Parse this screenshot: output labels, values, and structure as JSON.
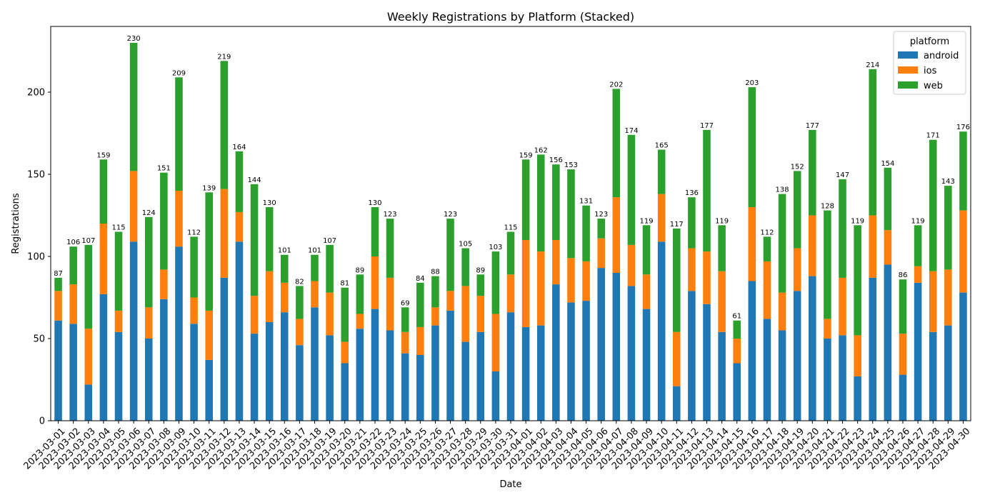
{
  "chart_data": {
    "type": "bar",
    "stacked": true,
    "title": "Weekly Registrations by Platform (Stacked)",
    "xlabel": "Date",
    "ylabel": "Registrations",
    "ylim": [
      0,
      240
    ],
    "yticks": [
      0,
      50,
      100,
      150,
      200
    ],
    "grid": false,
    "legend": {
      "title": "platform",
      "position": "top-right"
    },
    "categories": [
      "2023-03-01",
      "2023-03-02",
      "2023-03-03",
      "2023-03-04",
      "2023-03-05",
      "2023-03-06",
      "2023-03-07",
      "2023-03-08",
      "2023-03-09",
      "2023-03-10",
      "2023-03-11",
      "2023-03-12",
      "2023-03-13",
      "2023-03-14",
      "2023-03-15",
      "2023-03-16",
      "2023-03-17",
      "2023-03-18",
      "2023-03-19",
      "2023-03-20",
      "2023-03-21",
      "2023-03-22",
      "2023-03-23",
      "2023-03-24",
      "2023-03-25",
      "2023-03-26",
      "2023-03-27",
      "2023-03-28",
      "2023-03-29",
      "2023-03-30",
      "2023-03-31",
      "2023-04-01",
      "2023-04-02",
      "2023-04-03",
      "2023-04-04",
      "2023-04-05",
      "2023-04-06",
      "2023-04-07",
      "2023-04-08",
      "2023-04-09",
      "2023-04-10",
      "2023-04-11",
      "2023-04-12",
      "2023-04-13",
      "2023-04-14",
      "2023-04-15",
      "2023-04-16",
      "2023-04-17",
      "2023-04-18",
      "2023-04-19",
      "2023-04-20",
      "2023-04-21",
      "2023-04-22",
      "2023-04-23",
      "2023-04-24",
      "2023-04-25",
      "2023-04-26",
      "2023-04-27",
      "2023-04-28",
      "2023-04-29",
      "2023-04-30"
    ],
    "series": [
      {
        "name": "android",
        "color": "#1f77b4",
        "values": [
          61,
          59,
          22,
          77,
          54,
          109,
          50,
          74,
          106,
          59,
          37,
          87,
          109,
          53,
          60,
          66,
          46,
          69,
          52,
          35,
          56,
          68,
          55,
          41,
          40,
          58,
          67,
          48,
          54,
          30,
          66,
          57,
          58,
          83,
          72,
          73,
          93,
          90,
          82,
          68,
          109,
          21,
          79,
          71,
          54,
          35,
          85,
          62,
          55,
          79,
          88,
          50,
          52,
          27,
          87,
          95,
          28,
          84,
          54,
          58,
          78
        ]
      },
      {
        "name": "ios",
        "color": "#ff7f0e",
        "values": [
          18,
          24,
          34,
          43,
          13,
          43,
          19,
          18,
          34,
          16,
          30,
          54,
          18,
          23,
          31,
          18,
          16,
          16,
          26,
          13,
          9,
          32,
          32,
          13,
          17,
          11,
          12,
          34,
          22,
          35,
          23,
          53,
          45,
          27,
          27,
          24,
          18,
          46,
          25,
          21,
          29,
          33,
          26,
          32,
          37,
          15,
          45,
          35,
          23,
          26,
          37,
          12,
          35,
          25,
          38,
          21,
          25,
          10,
          37,
          34,
          50
        ]
      },
      {
        "name": "web",
        "color": "#2ca02c",
        "values": [
          8,
          23,
          51,
          39,
          48,
          78,
          55,
          59,
          69,
          37,
          72,
          78,
          37,
          68,
          39,
          17,
          20,
          16,
          29,
          33,
          24,
          30,
          36,
          15,
          27,
          19,
          44,
          23,
          13,
          38,
          26,
          49,
          59,
          46,
          54,
          34,
          12,
          66,
          67,
          30,
          27,
          63,
          31,
          74,
          28,
          11,
          73,
          15,
          60,
          47,
          52,
          66,
          60,
          67,
          89,
          38,
          33,
          25,
          80,
          51,
          48
        ]
      }
    ],
    "totals": [
      87,
      106,
      107,
      159,
      115,
      230,
      124,
      151,
      209,
      112,
      139,
      219,
      164,
      144,
      130,
      101,
      82,
      101,
      107,
      81,
      89,
      130,
      123,
      69,
      84,
      88,
      123,
      105,
      89,
      103,
      115,
      159,
      162,
      156,
      153,
      131,
      123,
      202,
      174,
      119,
      165,
      117,
      136,
      177,
      119,
      61,
      203,
      112,
      138,
      152,
      177,
      128,
      147,
      119,
      214,
      154,
      86,
      119,
      171,
      143,
      176
    ]
  }
}
